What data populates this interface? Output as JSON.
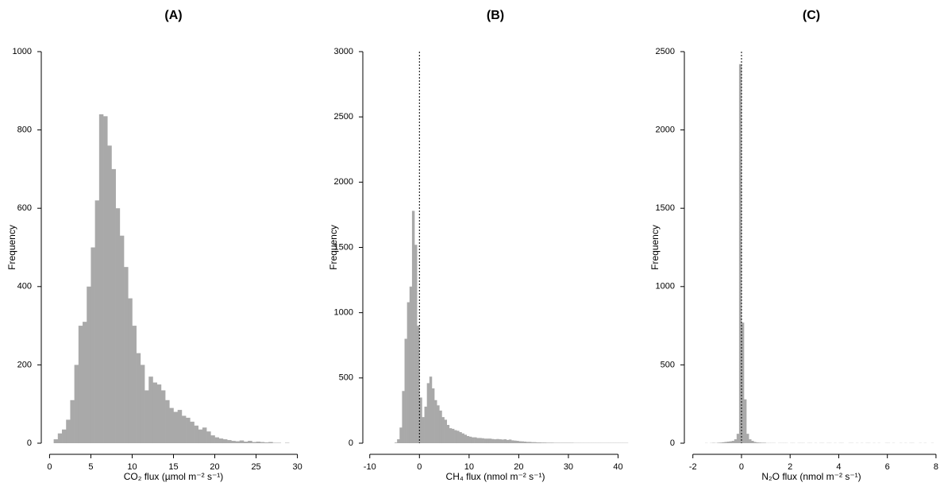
{
  "chart_data": [
    {
      "type": "histogram",
      "title": "(A)",
      "x_label": "CO₂ flux (µmol m⁻² s⁻¹)",
      "y_label": "Frequency",
      "color": "#a9a9a9",
      "bins": [
        0,
        0.5,
        1,
        1.5,
        2,
        2.5,
        3,
        3.5,
        4,
        4.5,
        5,
        5.5,
        6,
        6.5,
        7,
        7.5,
        8,
        8.5,
        9,
        9.5,
        10,
        10.5,
        11,
        11.5,
        12,
        12.5,
        13,
        13.5,
        14,
        14.5,
        15,
        15.5,
        16,
        16.5,
        17,
        17.5,
        18,
        18.5,
        19,
        19.5,
        20,
        20.5,
        21,
        21.5,
        22,
        22.5,
        23,
        23.5,
        24,
        24.5,
        25,
        25.5,
        26,
        26.5,
        27,
        27.5,
        28,
        28.5,
        29,
        29.5,
        30
      ],
      "values": [
        0,
        10,
        25,
        35,
        60,
        110,
        200,
        300,
        310,
        400,
        500,
        620,
        840,
        835,
        760,
        700,
        600,
        530,
        450,
        370,
        300,
        230,
        200,
        135,
        170,
        155,
        150,
        135,
        110,
        90,
        80,
        85,
        70,
        65,
        55,
        45,
        35,
        40,
        30,
        20,
        15,
        12,
        10,
        8,
        6,
        5,
        7,
        4,
        6,
        3,
        4,
        3,
        2,
        3,
        1,
        1,
        0,
        1,
        0,
        0
      ],
      "xlim": [
        -1,
        31
      ],
      "xticks": [
        0,
        5,
        10,
        15,
        20,
        25,
        30
      ],
      "ylim": [
        0,
        1000
      ],
      "yticks": [
        0,
        200,
        400,
        600,
        800,
        1000
      ]
    },
    {
      "type": "histogram",
      "title": "(B)",
      "x_label": "CH₄ flux (nmol m⁻² s⁻¹)",
      "y_label": "Frequency",
      "color": "#a9a9a9",
      "vline": 0,
      "bins": [
        -5,
        -4.5,
        -4,
        -3.5,
        -3,
        -2.5,
        -2,
        -1.5,
        -1,
        -0.5,
        0,
        0.5,
        1,
        1.5,
        2,
        2.5,
        3,
        3.5,
        4,
        4.5,
        5,
        5.5,
        6,
        6.5,
        7,
        7.5,
        8,
        8.5,
        9,
        9.5,
        10,
        10.5,
        11,
        11.5,
        12,
        12.5,
        13,
        13.5,
        14,
        14.5,
        15,
        15.5,
        16,
        16.5,
        17,
        17.5,
        18,
        18.5,
        19,
        19.5,
        20,
        20.5,
        21,
        21.5,
        22,
        22.5,
        23,
        23.5,
        24,
        24.5,
        25,
        25.5,
        26,
        26.5,
        27,
        27.5,
        28,
        28.5,
        29,
        29.5,
        30,
        30.5,
        31,
        31.5,
        32,
        32.5,
        33,
        33.5,
        34,
        34.5,
        35,
        35.5,
        36,
        36.5,
        37,
        37.5,
        38,
        38.5,
        39,
        39.5,
        40,
        40.5,
        41,
        41.5,
        42
      ],
      "values": [
        5,
        30,
        120,
        400,
        800,
        1080,
        1200,
        1780,
        1520,
        900,
        350,
        200,
        280,
        460,
        510,
        420,
        330,
        290,
        250,
        200,
        180,
        140,
        115,
        110,
        100,
        95,
        85,
        75,
        65,
        55,
        50,
        45,
        45,
        40,
        40,
        38,
        35,
        35,
        35,
        32,
        30,
        32,
        30,
        28,
        30,
        25,
        28,
        22,
        20,
        18,
        15,
        14,
        12,
        10,
        10,
        8,
        8,
        6,
        6,
        5,
        5,
        4,
        4,
        4,
        3,
        3,
        3,
        3,
        3,
        3,
        3,
        3,
        2,
        2,
        2,
        2,
        2,
        2,
        2,
        2,
        2,
        2,
        2,
        2,
        2,
        2,
        2,
        2,
        2,
        2,
        2,
        2,
        2,
        2
      ],
      "xlim": [
        -11.4,
        42
      ],
      "xticks": [
        -10,
        0,
        10,
        20,
        30,
        40
      ],
      "ylim": [
        0,
        3000
      ],
      "yticks": [
        0,
        500,
        1000,
        1500,
        2000,
        2500,
        3000
      ]
    },
    {
      "type": "histogram",
      "title": "(C)",
      "x_label": "N₂O flux (nmol m⁻² s⁻¹)",
      "y_label": "Frequency",
      "color": "#a9a9a9",
      "vline": 0,
      "bins": [
        -1.5,
        -1.4,
        -1.3,
        -1.2,
        -1.1,
        -1,
        -0.9,
        -0.8,
        -0.7,
        -0.6,
        -0.5,
        -0.4,
        -0.3,
        -0.2,
        -0.1,
        0,
        0.1,
        0.2,
        0.3,
        0.4,
        0.5,
        0.6,
        0.7,
        0.8,
        0.9,
        1,
        1.1,
        1.2,
        1.3,
        1.4,
        1.5,
        1.6,
        1.7,
        1.8,
        1.9,
        2,
        2.1,
        2.2,
        2.3,
        2.4,
        2.5,
        2.6,
        2.7,
        2.8,
        2.9,
        3,
        3.1,
        3.2,
        3.3,
        3.4,
        3.5,
        3.6,
        3.7,
        3.8,
        3.9,
        4,
        4.1,
        4.2,
        4.3,
        4.4,
        4.5,
        4.6,
        4.7,
        4.8,
        4.9,
        5,
        5.1,
        5.2,
        5.3,
        5.4,
        5.5,
        5.6,
        5.7,
        5.8,
        5.9,
        6,
        6.1,
        6.2,
        6.3,
        6.4,
        6.5,
        6.6,
        6.7,
        6.8,
        6.9,
        7,
        7.1,
        7.2,
        7.3,
        7.4,
        7.5,
        7.6,
        7.7,
        7.8,
        7.9,
        8
      ],
      "values": [
        1,
        0,
        1,
        2,
        1,
        3,
        4,
        6,
        8,
        10,
        12,
        15,
        25,
        60,
        2420,
        770,
        280,
        60,
        25,
        15,
        8,
        5,
        4,
        3,
        3,
        1,
        1,
        1,
        1,
        0,
        1,
        1,
        1,
        1,
        0,
        1,
        1,
        0,
        1,
        1,
        1,
        0,
        1,
        1,
        0,
        1,
        0,
        1,
        1,
        0,
        1,
        1,
        0,
        1,
        0,
        1,
        1,
        0,
        0,
        1,
        1,
        0,
        1,
        0,
        1,
        0,
        1,
        1,
        0,
        1,
        0,
        1,
        0,
        0,
        1,
        1,
        0,
        1,
        0,
        0,
        1,
        0,
        1,
        0,
        1,
        1,
        0,
        0,
        1,
        0,
        1,
        0,
        0,
        1,
        0
      ],
      "xlim": [
        -2.35,
        8.1
      ],
      "xticks": [
        -2,
        0,
        2,
        4,
        6,
        8
      ],
      "ylim": [
        0,
        2500
      ],
      "yticks": [
        0,
        500,
        1000,
        1500,
        2000,
        2500
      ]
    }
  ]
}
